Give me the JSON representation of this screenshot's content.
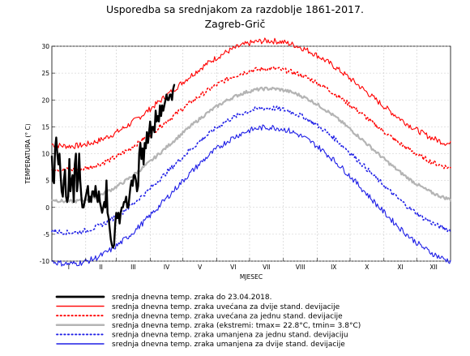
{
  "chart_data": {
    "type": "line",
    "title": "Usporedba sa srednjakom za razdoblje 1861-2017.",
    "subtitle": "Zagreb-Grič",
    "xlabel": "MJESEC",
    "ylabel": "TEMPERATURA (° C)",
    "ylim": [
      -10,
      30
    ],
    "yticks": [
      "-10",
      "-5",
      "0",
      "5",
      "10",
      "15",
      "20",
      "25",
      "30"
    ],
    "xlim": [
      1,
      366
    ],
    "month_labels": [
      "I",
      "II",
      "III",
      "IV",
      "V",
      "VI",
      "VII",
      "VIII",
      "IX",
      "X",
      "XI",
      "XII"
    ],
    "grid": true,
    "legend_position": "bottom",
    "series": [
      {
        "name": "srednja dnevna temp. zraka do 23.04.2018.",
        "color": "#000000",
        "style": "solid",
        "width": 2.4,
        "x": [
          1,
          2,
          3,
          4,
          5,
          6,
          7,
          8,
          9,
          10,
          11,
          12,
          13,
          14,
          15,
          16,
          17,
          18,
          19,
          20,
          21,
          22,
          23,
          24,
          25,
          26,
          27,
          28,
          29,
          30,
          31,
          32,
          33,
          34,
          35,
          36,
          37,
          38,
          39,
          40,
          41,
          42,
          43,
          44,
          45,
          46,
          47,
          48,
          49,
          50,
          51,
          52,
          53,
          54,
          55,
          56,
          57,
          58,
          59,
          60,
          61,
          62,
          63,
          64,
          65,
          66,
          67,
          68,
          69,
          70,
          71,
          72,
          73,
          74,
          75,
          76,
          77,
          78,
          79,
          80,
          81,
          82,
          83,
          84,
          85,
          86,
          87,
          88,
          89,
          90,
          91,
          92,
          93,
          94,
          95,
          96,
          97,
          98,
          99,
          100,
          101,
          102,
          103,
          104,
          105,
          106,
          107,
          108,
          109,
          110,
          111,
          112,
          113
        ],
        "y": [
          9.5,
          5,
          4.5,
          11,
          13,
          10,
          8,
          10,
          6,
          3,
          2,
          5,
          7,
          2,
          1,
          2,
          9,
          3,
          5,
          6,
          1,
          8,
          10,
          3,
          5,
          10,
          5,
          2,
          0,
          0,
          1,
          2,
          3,
          4,
          1,
          2,
          1,
          3,
          3,
          2,
          4,
          2,
          1,
          3,
          1,
          0,
          -1,
          0,
          1,
          0,
          5,
          -1,
          -2,
          -4,
          -6,
          -7,
          -7.5,
          -7,
          -3,
          -1,
          -2,
          -1,
          -3,
          -1,
          0,
          0,
          1,
          1,
          2,
          0,
          0,
          2,
          4,
          5,
          4,
          6,
          6,
          5,
          3,
          4,
          10,
          12,
          9,
          11,
          8,
          12,
          11,
          14,
          12,
          14,
          16,
          13,
          15,
          15,
          14,
          18,
          16,
          17,
          16,
          19,
          17,
          19,
          18,
          19,
          20,
          21,
          20,
          20,
          21,
          21,
          20,
          22,
          22.8
        ]
      },
      {
        "name": "srednja dnevna temp. zraka uvećana za dvije stand. devijacije",
        "color": "#ff0000",
        "style": "solid",
        "width": 1.1,
        "mean": 11.6,
        "amp": 9.8,
        "offset": 9.6,
        "noise": 0.55
      },
      {
        "name": "srednja dnevna temp. zraka uvećana za jednu stand. devijacije",
        "color": "#ff0000",
        "style": "dotted",
        "width": 1.6,
        "mean": 11.6,
        "amp": 9.4,
        "offset": 4.8,
        "noise": 0.45
      },
      {
        "name": "srednja dnevna temp. zraka (ekstremi: tmax= 22.8°C, tmin= 3.8°C)",
        "color": "#b4b4b4",
        "style": "solid",
        "width": 2.2,
        "mean": 11.6,
        "amp": 10.5,
        "offset": 0,
        "noise": 0.3
      },
      {
        "name": "srednja dnevna temp. zraka umanjena za jednu stand. devijaciju",
        "color": "#1e1ee6",
        "style": "dotted",
        "width": 1.6,
        "mean": 11.6,
        "amp": 11.6,
        "offset": -4.7,
        "noise": 0.45
      },
      {
        "name": "srednja dnevna temp. zraka umanjena za dvije stand. devijacije",
        "color": "#1e1ee6",
        "style": "solid",
        "width": 1.1,
        "mean": 11.6,
        "amp": 12.7,
        "offset": -9.4,
        "noise": 0.55
      }
    ]
  }
}
